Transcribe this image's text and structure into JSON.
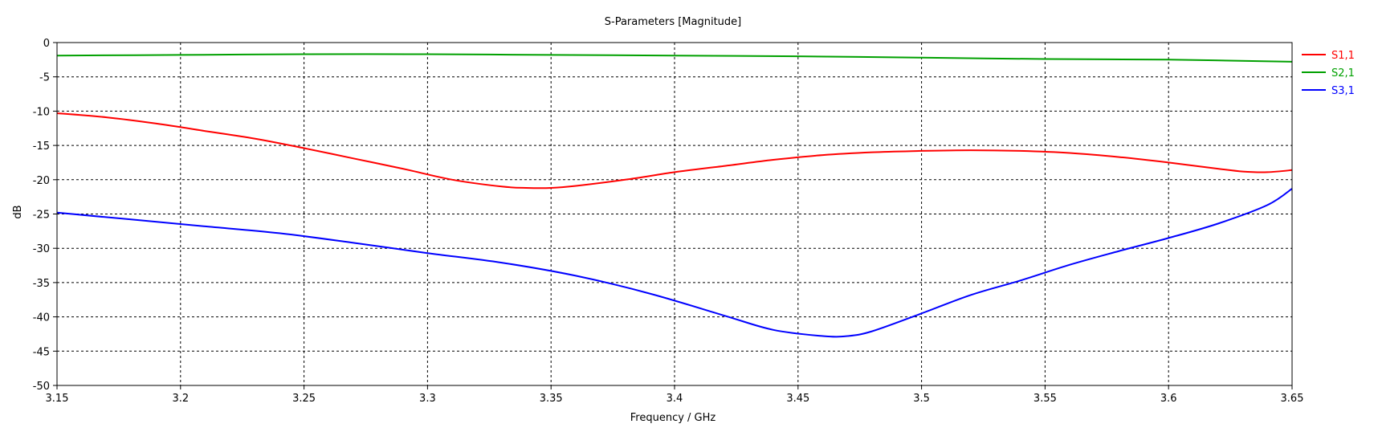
{
  "chart_data": {
    "type": "line",
    "title": "S-Parameters [Magnitude]",
    "xlabel": "Frequency / GHz",
    "ylabel": "dB",
    "xlim": [
      3.15,
      3.65
    ],
    "ylim": [
      -50,
      0
    ],
    "xticks": [
      3.15,
      3.2,
      3.25,
      3.3,
      3.35,
      3.4,
      3.45,
      3.5,
      3.55,
      3.6,
      3.65
    ],
    "xtick_labels": [
      "3.15",
      "3.2",
      "3.25",
      "3.3",
      "3.35",
      "3.4",
      "3.45",
      "3.5",
      "3.55",
      "3.6",
      "3.65"
    ],
    "yticks": [
      0,
      -5,
      -10,
      -15,
      -20,
      -25,
      -30,
      -35,
      -40,
      -45,
      -50
    ],
    "ytick_labels": [
      "0",
      "-5",
      "-10",
      "-15",
      "-20",
      "-25",
      "-30",
      "-35",
      "-40",
      "-45",
      "-50"
    ],
    "grid": true,
    "legend_position": "right",
    "series": [
      {
        "name": "S1,1",
        "color": "#ff0000",
        "x": [
          3.15,
          3.17,
          3.19,
          3.21,
          3.23,
          3.25,
          3.27,
          3.29,
          3.31,
          3.33,
          3.34,
          3.35,
          3.36,
          3.38,
          3.4,
          3.42,
          3.44,
          3.46,
          3.48,
          3.5,
          3.52,
          3.54,
          3.56,
          3.58,
          3.6,
          3.62,
          3.63,
          3.64,
          3.65
        ],
        "y": [
          -10.3,
          -10.9,
          -11.8,
          -12.9,
          -14.0,
          -15.4,
          -16.9,
          -18.4,
          -20.0,
          -21.0,
          -21.2,
          -21.2,
          -20.9,
          -20.0,
          -18.9,
          -18.0,
          -17.1,
          -16.4,
          -16.0,
          -15.8,
          -15.7,
          -15.8,
          -16.1,
          -16.7,
          -17.5,
          -18.4,
          -18.8,
          -18.9,
          -18.6
        ]
      },
      {
        "name": "S2,1",
        "color": "#00a000",
        "x": [
          3.15,
          3.2,
          3.25,
          3.3,
          3.35,
          3.4,
          3.45,
          3.5,
          3.55,
          3.6,
          3.65
        ],
        "y": [
          -1.9,
          -1.8,
          -1.7,
          -1.7,
          -1.8,
          -1.9,
          -2.0,
          -2.2,
          -2.4,
          -2.5,
          -2.8
        ]
      },
      {
        "name": "S3,1",
        "color": "#0000ff",
        "x": [
          3.15,
          3.18,
          3.21,
          3.24,
          3.27,
          3.3,
          3.33,
          3.36,
          3.39,
          3.42,
          3.44,
          3.46,
          3.47,
          3.48,
          3.5,
          3.52,
          3.54,
          3.56,
          3.58,
          3.6,
          3.62,
          3.64,
          3.65
        ],
        "y": [
          -24.8,
          -25.8,
          -26.8,
          -27.8,
          -29.2,
          -30.7,
          -32.1,
          -34.0,
          -36.6,
          -39.8,
          -41.9,
          -42.8,
          -42.8,
          -42.1,
          -39.5,
          -36.8,
          -34.7,
          -32.4,
          -30.4,
          -28.5,
          -26.4,
          -23.7,
          -21.3
        ]
      }
    ]
  }
}
